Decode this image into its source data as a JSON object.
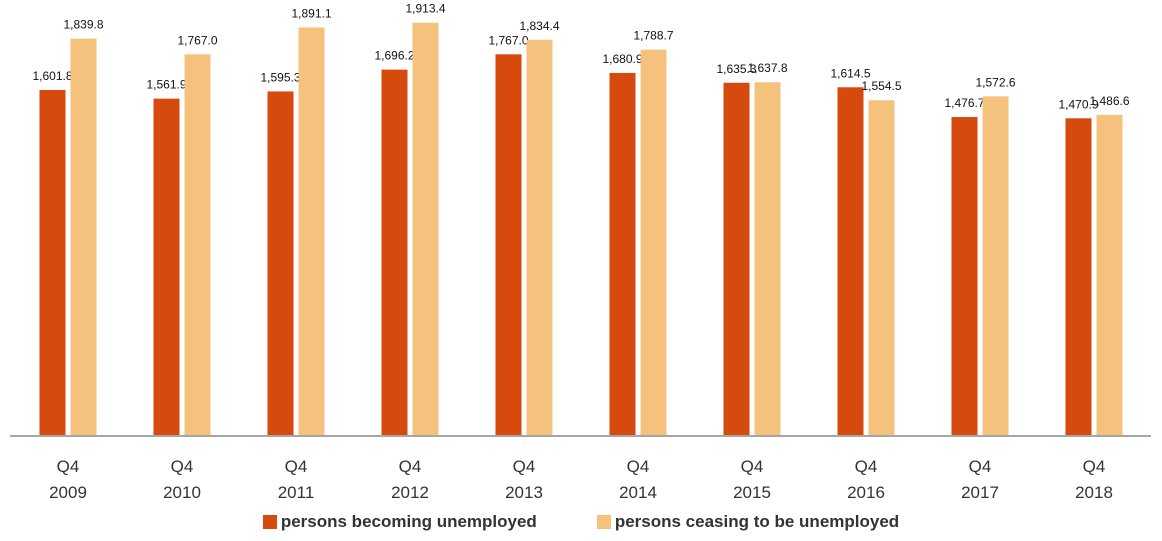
{
  "chart_data": {
    "type": "bar",
    "categories": [
      "Q4\n2009",
      "Q4\n2010",
      "Q4\n2011",
      "Q4\n2012",
      "Q4\n2013",
      "Q4\n2014",
      "Q4\n2015",
      "Q4\n2016",
      "Q4\n2017",
      "Q4\n2018"
    ],
    "series": [
      {
        "name": "persons becoming unemployed",
        "color": "#d64a0e",
        "values": [
          1601.8,
          1561.9,
          1595.3,
          1696.2,
          1767.0,
          1680.9,
          1635.3,
          1614.5,
          1476.7,
          1470.9
        ],
        "value_labels": [
          "1,601.8",
          "1,561.9",
          "1,595.3",
          "1,696.2",
          "1,767.0",
          "1,680.9",
          "1,635.3",
          "1,614.5",
          "1,476.7",
          "1,470.9"
        ]
      },
      {
        "name": "persons ceasing to be unemployed",
        "color": "#f5c27d",
        "values": [
          1839.8,
          1767.0,
          1891.1,
          1913.4,
          1834.4,
          1788.7,
          1637.8,
          1554.5,
          1572.6,
          1486.6
        ],
        "value_labels": [
          "1,839.8",
          "1,767.0",
          "1,891.1",
          "1,913.4",
          "1,834.4",
          "1,788.7",
          "1,637.8",
          "1,554.5",
          "1,572.6",
          "1,486.6"
        ]
      }
    ],
    "ylim": [
      0,
      2000
    ],
    "legend": "bottom"
  }
}
